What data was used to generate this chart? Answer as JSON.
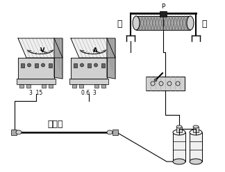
{
  "bg_color": "#ffffff",
  "line_color": "#000000",
  "label_zuo": "左",
  "label_you": "右",
  "label_p": "P",
  "label_jinshu": "金属丝",
  "voltmeter_label": "V",
  "ammeter_label": "A",
  "v_scale": "3  15",
  "a_scale": "0.6  3",
  "gray_light": "#d0d0d0",
  "gray_mid": "#aaaaaa",
  "gray_dark": "#666666",
  "gray_stripe": "#888888",
  "white_ish": "#f0f0f0"
}
